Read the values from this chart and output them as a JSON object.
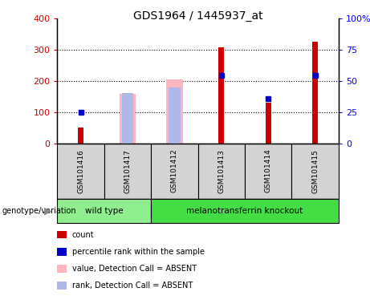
{
  "title": "GDS1964 / 1445937_at",
  "samples": [
    "GSM101416",
    "GSM101417",
    "GSM101412",
    "GSM101413",
    "GSM101414",
    "GSM101415"
  ],
  "count_values": [
    50,
    null,
    null,
    308,
    130,
    325
  ],
  "percentile_rank_values": [
    100,
    null,
    null,
    218,
    144,
    218
  ],
  "absent_value_values": [
    null,
    158,
    205,
    null,
    null,
    null
  ],
  "absent_rank_values": [
    null,
    162,
    178,
    null,
    null,
    null
  ],
  "count_color": "#cc0000",
  "percentile_rank_color": "#0000cc",
  "absent_value_color": "#ffb6c1",
  "absent_rank_color": "#b0b8e8",
  "ylim_left": [
    0,
    400
  ],
  "ylim_right": [
    0,
    100
  ],
  "yticks_left": [
    0,
    100,
    200,
    300,
    400
  ],
  "yticks_right": [
    0,
    25,
    50,
    75,
    100
  ],
  "yticklabels_right": [
    "0",
    "25",
    "50",
    "75",
    "100%"
  ],
  "absent_bar_width": 0.35,
  "rank_bar_width": 0.25,
  "count_bar_width": 0.12,
  "wt_color": "#90ee90",
  "mt_color": "#44dd44",
  "sample_bg_color": "#d3d3d3",
  "genotype_label": "genotype/variation",
  "legend_items": [
    {
      "label": "count",
      "color": "#cc0000"
    },
    {
      "label": "percentile rank within the sample",
      "color": "#0000cc"
    },
    {
      "label": "value, Detection Call = ABSENT",
      "color": "#ffb6c1"
    },
    {
      "label": "rank, Detection Call = ABSENT",
      "color": "#b0b8e8"
    }
  ]
}
